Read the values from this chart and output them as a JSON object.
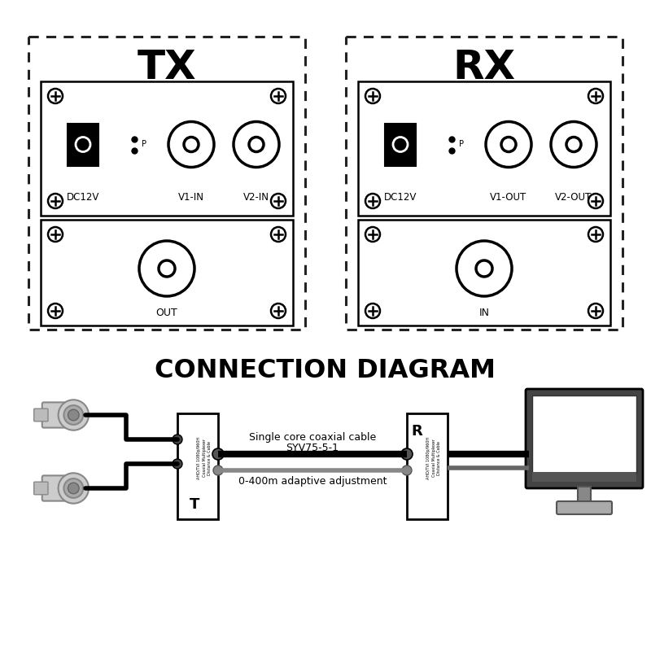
{
  "bg_color": "#ffffff",
  "title_tx": "TX",
  "title_rx": "RX",
  "connection_title": "CONNECTION DIAGRAM",
  "cable_label1": "Single core coaxial cable",
  "cable_label2": "SYV75-5-1",
  "cable_label3": "0-400m adaptive adjustment",
  "tx_top_labels": [
    "DC12V",
    "V1-IN",
    "V2-IN"
  ],
  "tx_bottom_label": "OUT",
  "rx_top_labels": [
    "DC12V",
    "V1-OUT",
    "V2-OUT"
  ],
  "rx_bottom_label": "IN",
  "black": "#000000",
  "white": "#ffffff",
  "gray_light": "#e8e8e8",
  "gray_medium": "#aaaaaa",
  "gray_dark": "#555555",
  "dashed_color": "#222222"
}
